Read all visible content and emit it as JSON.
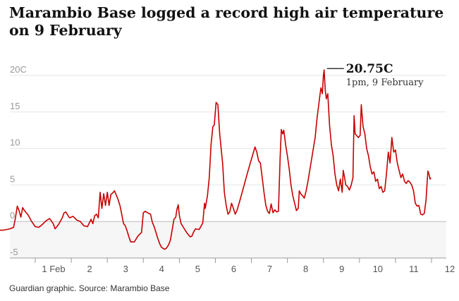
{
  "chart_data": {
    "type": "line",
    "title": "Marambio Base logged a record high air temperature on 9 February",
    "source": "Guardian graphic. Source: Marambio Base",
    "ylim": [
      -5,
      21
    ],
    "y_ticks": [
      {
        "value": 20,
        "label": "20C"
      },
      {
        "value": 15,
        "label": "15"
      },
      {
        "value": 10,
        "label": "10"
      },
      {
        "value": 5,
        "label": "5"
      },
      {
        "value": 0,
        "label": "0"
      },
      {
        "value": -5,
        "label": "-5"
      }
    ],
    "xlim": [
      0,
      12.3
    ],
    "x_ticks": [
      {
        "value": 1,
        "label": "1 Feb"
      },
      {
        "value": 2,
        "label": "2"
      },
      {
        "value": 3,
        "label": "3"
      },
      {
        "value": 4,
        "label": "4"
      },
      {
        "value": 5,
        "label": "5"
      },
      {
        "value": 6,
        "label": "6"
      },
      {
        "value": 7,
        "label": "7"
      },
      {
        "value": 8,
        "label": "8"
      },
      {
        "value": 9,
        "label": "9"
      },
      {
        "value": 10,
        "label": "10"
      },
      {
        "value": 11,
        "label": "11"
      },
      {
        "value": 12,
        "label": "12"
      }
    ],
    "series": [
      {
        "name": "Air temperature",
        "color": "#c70000",
        "points": [
          [
            0.0,
            -1.2
          ],
          [
            0.1,
            -1.2
          ],
          [
            0.2,
            -1.1
          ],
          [
            0.3,
            -1.0
          ],
          [
            0.4,
            -0.8
          ],
          [
            0.45,
            0.5
          ],
          [
            0.5,
            2.1
          ],
          [
            0.55,
            1.5
          ],
          [
            0.6,
            0.6
          ],
          [
            0.65,
            1.9
          ],
          [
            0.7,
            1.5
          ],
          [
            0.8,
            0.9
          ],
          [
            0.9,
            0.0
          ],
          [
            1.0,
            -0.7
          ],
          [
            1.1,
            -0.8
          ],
          [
            1.2,
            -0.4
          ],
          [
            1.3,
            0.1
          ],
          [
            1.4,
            0.4
          ],
          [
            1.5,
            -0.3
          ],
          [
            1.55,
            -1.0
          ],
          [
            1.65,
            -0.4
          ],
          [
            1.75,
            0.5
          ],
          [
            1.8,
            1.2
          ],
          [
            1.85,
            1.3
          ],
          [
            1.95,
            0.5
          ],
          [
            2.05,
            0.7
          ],
          [
            2.15,
            0.2
          ],
          [
            2.25,
            0.0
          ],
          [
            2.35,
            -0.6
          ],
          [
            2.45,
            -0.7
          ],
          [
            2.55,
            0.3
          ],
          [
            2.6,
            -0.3
          ],
          [
            2.65,
            0.8
          ],
          [
            2.7,
            1.0
          ],
          [
            2.75,
            0.5
          ],
          [
            2.8,
            4.0
          ],
          [
            2.85,
            1.8
          ],
          [
            2.9,
            3.8
          ],
          [
            2.95,
            2.2
          ],
          [
            3.0,
            4.0
          ],
          [
            3.05,
            2.2
          ],
          [
            3.1,
            3.7
          ],
          [
            3.15,
            3.9
          ],
          [
            3.2,
            4.2
          ],
          [
            3.3,
            3.0
          ],
          [
            3.35,
            2.2
          ],
          [
            3.4,
            1.0
          ],
          [
            3.45,
            -0.3
          ],
          [
            3.5,
            -0.6
          ],
          [
            3.55,
            -1.3
          ],
          [
            3.6,
            -2.1
          ],
          [
            3.65,
            -2.8
          ],
          [
            3.75,
            -2.8
          ],
          [
            3.85,
            -2.0
          ],
          [
            3.95,
            -1.5
          ],
          [
            4.0,
            1.2
          ],
          [
            4.05,
            1.4
          ],
          [
            4.15,
            1.1
          ],
          [
            4.2,
            1.0
          ],
          [
            4.25,
            -0.1
          ],
          [
            4.3,
            -0.7
          ],
          [
            4.35,
            -1.5
          ],
          [
            4.4,
            -2.3
          ],
          [
            4.45,
            -3.0
          ],
          [
            4.5,
            -3.5
          ],
          [
            4.55,
            -3.7
          ],
          [
            4.6,
            -3.8
          ],
          [
            4.65,
            -3.6
          ],
          [
            4.7,
            -3.2
          ],
          [
            4.75,
            -2.6
          ],
          [
            4.8,
            -1.2
          ],
          [
            4.85,
            0.3
          ],
          [
            4.9,
            0.6
          ],
          [
            4.93,
            1.6
          ],
          [
            4.97,
            2.3
          ],
          [
            5.0,
            0.8
          ],
          [
            5.05,
            -0.3
          ],
          [
            5.1,
            -0.7
          ],
          [
            5.2,
            -1.5
          ],
          [
            5.3,
            -2.1
          ],
          [
            5.35,
            -2.0
          ],
          [
            5.4,
            -1.4
          ],
          [
            5.45,
            -1.0
          ],
          [
            5.55,
            -1.1
          ],
          [
            5.65,
            -0.2
          ],
          [
            5.7,
            2.5
          ],
          [
            5.72,
            1.8
          ],
          [
            5.78,
            3.5
          ],
          [
            5.83,
            6.0
          ],
          [
            5.88,
            10.5
          ],
          [
            5.93,
            13.0
          ],
          [
            5.97,
            13.2
          ],
          [
            6.02,
            16.3
          ],
          [
            6.07,
            16.0
          ],
          [
            6.12,
            12.0
          ],
          [
            6.2,
            8.0
          ],
          [
            6.25,
            4.0
          ],
          [
            6.3,
            2.2
          ],
          [
            6.35,
            1.0
          ],
          [
            6.4,
            1.3
          ],
          [
            6.45,
            2.5
          ],
          [
            6.5,
            1.8
          ],
          [
            6.55,
            1.0
          ],
          [
            6.6,
            1.5
          ],
          [
            6.7,
            3.2
          ],
          [
            6.8,
            5.0
          ],
          [
            6.9,
            6.8
          ],
          [
            7.0,
            8.5
          ],
          [
            7.1,
            10.2
          ],
          [
            7.15,
            9.5
          ],
          [
            7.2,
            8.3
          ],
          [
            7.25,
            8.0
          ],
          [
            7.3,
            6.0
          ],
          [
            7.35,
            4.0
          ],
          [
            7.4,
            2.2
          ],
          [
            7.45,
            1.4
          ],
          [
            7.5,
            1.1
          ],
          [
            7.55,
            2.4
          ],
          [
            7.6,
            1.2
          ],
          [
            7.65,
            1.6
          ],
          [
            7.7,
            1.3
          ],
          [
            7.75,
            1.4
          ],
          [
            7.8,
            9.0
          ],
          [
            7.83,
            12.6
          ],
          [
            7.87,
            12.0
          ],
          [
            7.9,
            12.5
          ],
          [
            7.95,
            10.5
          ],
          [
            8.0,
            9.0
          ],
          [
            8.05,
            7.2
          ],
          [
            8.1,
            5.0
          ],
          [
            8.15,
            3.5
          ],
          [
            8.2,
            2.5
          ],
          [
            8.25,
            1.5
          ],
          [
            8.3,
            1.8
          ],
          [
            8.33,
            4.2
          ],
          [
            8.37,
            3.8
          ],
          [
            8.42,
            3.5
          ],
          [
            8.47,
            3.2
          ],
          [
            8.52,
            4.2
          ],
          [
            8.57,
            5.5
          ],
          [
            8.62,
            7.0
          ],
          [
            8.67,
            8.5
          ],
          [
            8.72,
            10.0
          ],
          [
            8.77,
            11.5
          ],
          [
            8.82,
            14.0
          ],
          [
            8.87,
            16.0
          ],
          [
            8.9,
            17.2
          ],
          [
            8.93,
            18.3
          ],
          [
            8.97,
            17.5
          ],
          [
            9.0,
            20.0
          ],
          [
            9.02,
            20.75
          ],
          [
            9.05,
            18.0
          ],
          [
            9.08,
            16.8
          ],
          [
            9.12,
            17.5
          ],
          [
            9.17,
            13.2
          ],
          [
            9.22,
            10.5
          ],
          [
            9.27,
            9.0
          ],
          [
            9.32,
            6.5
          ],
          [
            9.37,
            5.0
          ],
          [
            9.42,
            4.2
          ],
          [
            9.47,
            5.8
          ],
          [
            9.52,
            4.0
          ],
          [
            9.55,
            7.0
          ],
          [
            9.58,
            6.2
          ],
          [
            9.62,
            5.0
          ],
          [
            9.67,
            4.8
          ],
          [
            9.72,
            4.3
          ],
          [
            9.77,
            5.0
          ],
          [
            9.82,
            6.0
          ],
          [
            9.85,
            14.5
          ],
          [
            9.88,
            12.0
          ],
          [
            9.92,
            11.8
          ],
          [
            9.97,
            11.5
          ],
          [
            10.02,
            11.8
          ],
          [
            10.05,
            16.0
          ],
          [
            10.1,
            13.0
          ],
          [
            10.15,
            12.0
          ],
          [
            10.2,
            10.0
          ],
          [
            10.25,
            9.0
          ],
          [
            10.3,
            7.5
          ],
          [
            10.35,
            6.5
          ],
          [
            10.4,
            6.8
          ],
          [
            10.45,
            5.5
          ],
          [
            10.5,
            5.8
          ],
          [
            10.55,
            4.5
          ],
          [
            10.6,
            4.8
          ],
          [
            10.65,
            4.0
          ],
          [
            10.7,
            4.2
          ],
          [
            10.75,
            6.5
          ],
          [
            10.8,
            9.5
          ],
          [
            10.85,
            8.0
          ],
          [
            10.9,
            11.5
          ],
          [
            10.95,
            9.5
          ],
          [
            11.0,
            9.8
          ],
          [
            11.05,
            8.0
          ],
          [
            11.1,
            7.0
          ],
          [
            11.15,
            6.0
          ],
          [
            11.2,
            6.5
          ],
          [
            11.25,
            5.5
          ],
          [
            11.3,
            5.2
          ],
          [
            11.35,
            5.6
          ],
          [
            11.4,
            5.4
          ],
          [
            11.45,
            5.0
          ],
          [
            11.5,
            4.2
          ],
          [
            11.55,
            2.5
          ],
          [
            11.6,
            2.1
          ],
          [
            11.65,
            2.2
          ],
          [
            11.7,
            1.0
          ],
          [
            11.75,
            0.9
          ],
          [
            11.8,
            1.1
          ],
          [
            11.85,
            3.0
          ],
          [
            11.88,
            5.5
          ],
          [
            11.9,
            6.9
          ],
          [
            11.93,
            6.5
          ],
          [
            11.96,
            5.8
          ],
          [
            11.98,
            6.0
          ]
        ]
      }
    ],
    "annotation": {
      "x": 9.02,
      "y": 20.75,
      "value_label": "20.75C",
      "date_label": "1pm, 9 February"
    }
  }
}
